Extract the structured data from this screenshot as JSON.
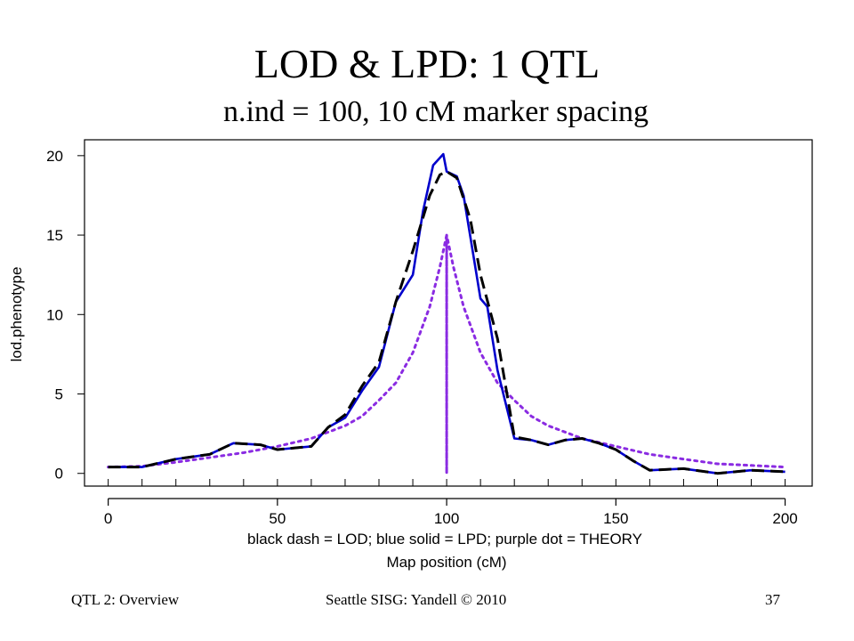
{
  "slide": {
    "title": "LOD & LPD: 1 QTL",
    "subtitle": "n.ind = 100, 10 cM marker spacing"
  },
  "footer": {
    "left": "QTL 2: Overview",
    "center": "Seattle SISG: Yandell © 2010",
    "page_number": "37"
  },
  "chart_data": {
    "type": "line",
    "title": "",
    "xlabel": "Map position (cM)",
    "xlabel_note": "black dash = LOD; blue solid = LPD; purple dot = THEORY",
    "ylabel": "lod.phenotype",
    "xlim": [
      -7,
      208
    ],
    "ylim": [
      -0.8,
      21
    ],
    "x_ticks": [
      0,
      50,
      100,
      150,
      200
    ],
    "y_ticks": [
      0,
      5,
      10,
      15,
      20
    ],
    "marker_positions": [
      0,
      10,
      20,
      30,
      40,
      50,
      60,
      70,
      80,
      90,
      100,
      110,
      120,
      130,
      140,
      150,
      160,
      170,
      180,
      190,
      200
    ],
    "grid": false,
    "legend": "none",
    "series": [
      {
        "name": "LOD",
        "style": "dashed",
        "color": "#000000",
        "points": [
          [
            0,
            0.4
          ],
          [
            10,
            0.4
          ],
          [
            20,
            0.9
          ],
          [
            30,
            1.2
          ],
          [
            37,
            1.9
          ],
          [
            45,
            1.8
          ],
          [
            50,
            1.5
          ],
          [
            60,
            1.7
          ],
          [
            65,
            2.9
          ],
          [
            70,
            3.7
          ],
          [
            75,
            5.5
          ],
          [
            80,
            7.0
          ],
          [
            85,
            10.8
          ],
          [
            90,
            14.0
          ],
          [
            95,
            17.5
          ],
          [
            98,
            18.8
          ],
          [
            100,
            19.0
          ],
          [
            103,
            18.6
          ],
          [
            107,
            16.0
          ],
          [
            110,
            12.5
          ],
          [
            115,
            8.5
          ],
          [
            120,
            2.3
          ],
          [
            125,
            2.1
          ],
          [
            130,
            1.8
          ],
          [
            135,
            2.1
          ],
          [
            140,
            2.2
          ],
          [
            145,
            1.9
          ],
          [
            150,
            1.5
          ],
          [
            155,
            0.8
          ],
          [
            160,
            0.2
          ],
          [
            170,
            0.3
          ],
          [
            180,
            0.0
          ],
          [
            190,
            0.2
          ],
          [
            200,
            0.1
          ]
        ]
      },
      {
        "name": "LPD",
        "style": "solid",
        "color": "#0000cc",
        "points": [
          [
            0,
            0.4
          ],
          [
            10,
            0.4
          ],
          [
            20,
            0.9
          ],
          [
            30,
            1.2
          ],
          [
            37,
            1.9
          ],
          [
            45,
            1.8
          ],
          [
            50,
            1.5
          ],
          [
            60,
            1.7
          ],
          [
            65,
            2.9
          ],
          [
            70,
            3.5
          ],
          [
            75,
            5.2
          ],
          [
            80,
            6.7
          ],
          [
            85,
            10.8
          ],
          [
            90,
            12.5
          ],
          [
            93,
            16.5
          ],
          [
            96,
            19.4
          ],
          [
            99,
            20.1
          ],
          [
            100,
            19.0
          ],
          [
            102,
            18.8
          ],
          [
            103,
            18.7
          ],
          [
            105,
            17.5
          ],
          [
            110,
            11.0
          ],
          [
            112,
            10.5
          ],
          [
            115,
            6.5
          ],
          [
            120,
            2.2
          ],
          [
            125,
            2.1
          ],
          [
            130,
            1.8
          ],
          [
            135,
            2.1
          ],
          [
            140,
            2.2
          ],
          [
            145,
            1.9
          ],
          [
            150,
            1.5
          ],
          [
            155,
            0.8
          ],
          [
            160,
            0.2
          ],
          [
            170,
            0.3
          ],
          [
            180,
            0.0
          ],
          [
            190,
            0.2
          ],
          [
            200,
            0.1
          ]
        ]
      },
      {
        "name": "THEORY",
        "style": "dotted",
        "color": "#8a2be2",
        "points": [
          [
            0,
            0.4
          ],
          [
            10,
            0.45
          ],
          [
            20,
            0.7
          ],
          [
            30,
            1.0
          ],
          [
            40,
            1.3
          ],
          [
            50,
            1.7
          ],
          [
            60,
            2.2
          ],
          [
            70,
            3.0
          ],
          [
            75,
            3.6
          ],
          [
            80,
            4.6
          ],
          [
            85,
            5.7
          ],
          [
            90,
            7.6
          ],
          [
            95,
            10.5
          ],
          [
            98,
            13.0
          ],
          [
            100,
            15.0
          ],
          [
            100,
            0
          ],
          [
            100,
            15.0
          ],
          [
            102,
            13.0
          ],
          [
            105,
            10.5
          ],
          [
            110,
            7.6
          ],
          [
            115,
            5.7
          ],
          [
            120,
            4.6
          ],
          [
            125,
            3.6
          ],
          [
            130,
            3.0
          ],
          [
            140,
            2.2
          ],
          [
            150,
            1.7
          ],
          [
            160,
            1.2
          ],
          [
            170,
            0.9
          ],
          [
            180,
            0.6
          ],
          [
            190,
            0.5
          ],
          [
            200,
            0.4
          ]
        ]
      }
    ]
  }
}
